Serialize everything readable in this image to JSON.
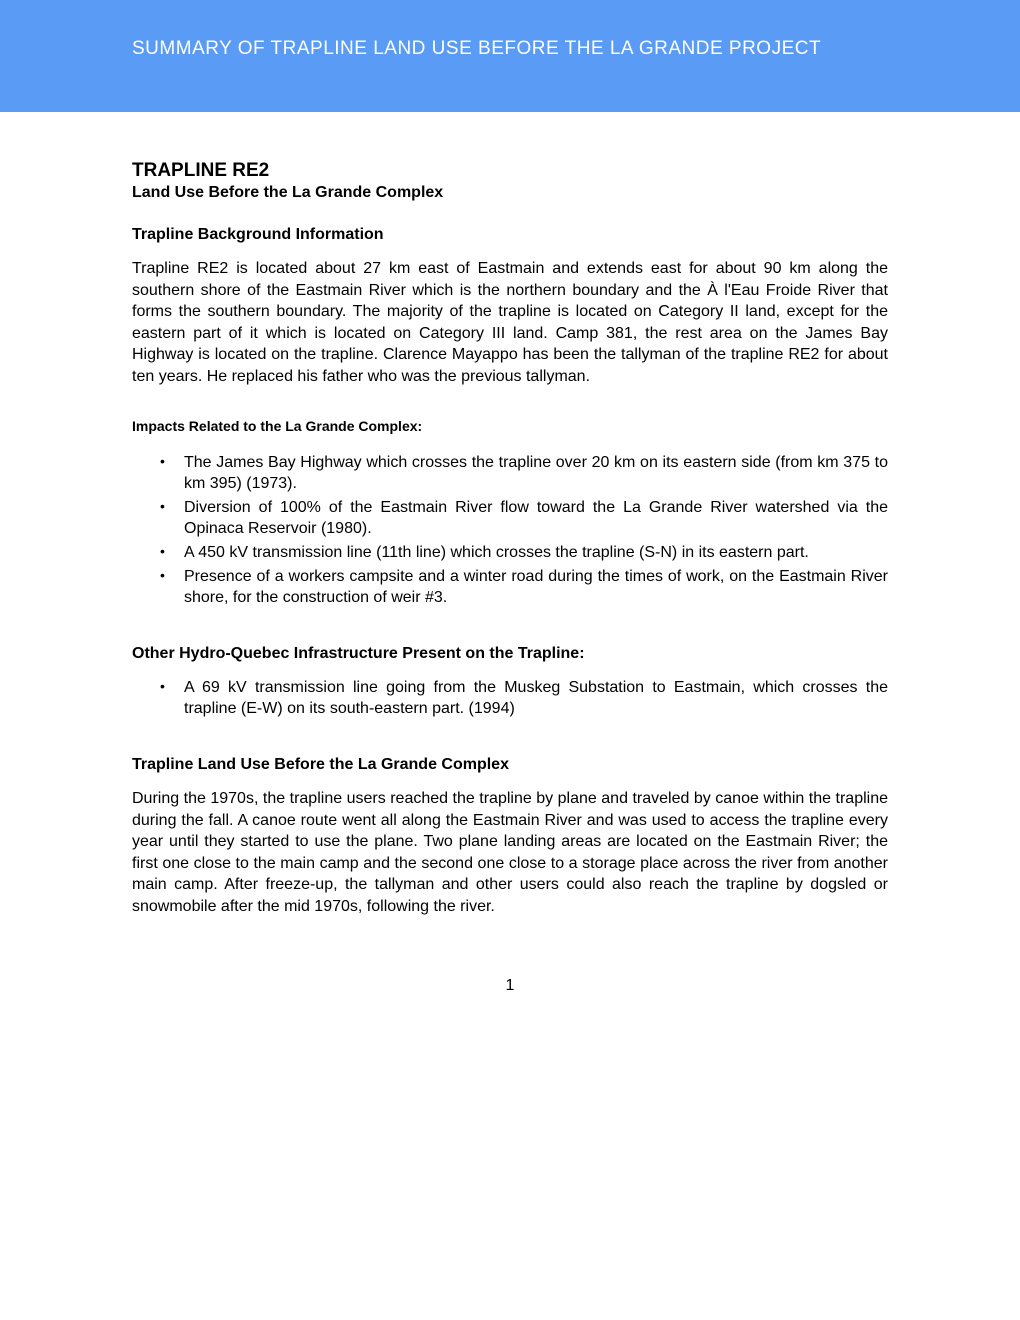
{
  "header": {
    "title": "SUMMARY OF TRAPLINE LAND USE BEFORE THE LA GRANDE PROJECT",
    "background_color": "#5a9bf5",
    "text_color": "#ffffff"
  },
  "main": {
    "title": "TRAPLINE RE2",
    "subtitle": "Land Use Before the La Grande Complex",
    "sections": {
      "background": {
        "heading": "Trapline Background Information",
        "text": "Trapline RE2 is located about 27 km east of Eastmain and extends east for about 90 km along the southern shore of the Eastmain River which is the  northern boundary and the À l'Eau Froide River that forms the southern boundary. The majority of the trapline is located on Category II land, except for the eastern part of it which is located on Category III land. Camp 381, the rest area on the James Bay Highway is located on the trapline. Clarence Mayappo has been the tallyman of the trapline RE2 for about ten years. He replaced his father who was the previous tallyman."
      },
      "impacts": {
        "heading": "Impacts Related to the La Grande Complex:",
        "items": [
          "The  James Bay Highway which crosses the trapline over 20 km on its eastern side (from km 375 to km 395) (1973).",
          "Diversion of 100% of the Eastmain River flow toward the La Grande River watershed via the Opinaca Reservoir (1980).",
          "A 450 kV transmission line (11th line) which crosses the trapline (S-N) in its eastern part.",
          "Presence of a workers campsite and a winter road during the times of work, on the Eastmain River shore, for the construction of weir #3."
        ]
      },
      "other_infrastructure": {
        "heading": "Other Hydro-Quebec Infrastructure Present on the Trapline:",
        "items": [
          "A 69 kV transmission line going from the Muskeg Substation to Eastmain, which crosses the trapline (E-W) on its south-eastern part. (1994)"
        ]
      },
      "land_use": {
        "heading": "Trapline Land Use Before the La Grande Complex",
        "text": "During the 1970s, the trapline users reached the trapline by plane and traveled by canoe within the trapline during the fall. A canoe route went all along the Eastmain River and was used to access the trapline every year until they started to use the plane. Two plane landing areas are located on the Eastmain River; the first one close to the main camp and the second one close to a storage place across the river from another main camp. After freeze-up, the tallyman and other users could also reach the trapline by dogsled or snowmobile after the mid 1970s, following the river."
      }
    }
  },
  "page_number": "1",
  "styling": {
    "body_font": "Arial",
    "body_font_size": 16,
    "heading_font_size": 16,
    "title_font_size": 19,
    "text_color": "#000000",
    "background_color": "#ffffff"
  }
}
